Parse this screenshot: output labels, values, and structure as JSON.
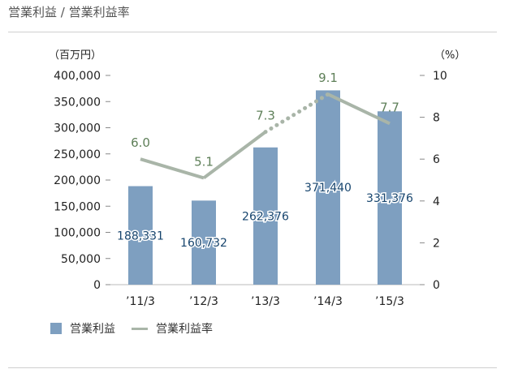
{
  "header": {
    "title": "営業利益 / 営業利益率"
  },
  "colors": {
    "bar": "#7e9fc0",
    "line": "#a9b5a8",
    "rate_label": "#5e7f58",
    "bar_label": "#17456e",
    "axis": "#222222"
  },
  "chart_data": {
    "type": "bar+line",
    "categories": [
      "’11/3",
      "’12/3",
      "’13/3",
      "’14/3",
      "’15/3"
    ],
    "left_axis": {
      "unit": "（百万円）",
      "ylim": [
        0,
        400000
      ],
      "ticks": [
        "0",
        "50,000",
        "100,000",
        "150,000",
        "200,000",
        "250,000",
        "300,000",
        "350,000",
        "400,000"
      ]
    },
    "right_axis": {
      "unit": "（%）",
      "ylim": [
        0,
        10
      ],
      "ticks": [
        "0",
        "2",
        "4",
        "6",
        "8",
        "10"
      ]
    },
    "series": [
      {
        "name": "営業利益",
        "type": "bar",
        "axis": "left",
        "values": [
          188331,
          160732,
          262376,
          371440,
          331376
        ],
        "labels": [
          "188,331",
          "160,732",
          "262,376",
          "371,440",
          "331,376"
        ]
      },
      {
        "name": "営業利益率",
        "type": "line",
        "axis": "right",
        "values": [
          6.0,
          5.1,
          7.3,
          9.1,
          7.7
        ],
        "labels": [
          "6.0",
          "5.1",
          "7.3",
          "9.1",
          "7.7"
        ],
        "dotted_segments": [
          2
        ]
      }
    ],
    "legend": {
      "position": "bottom-left"
    }
  }
}
